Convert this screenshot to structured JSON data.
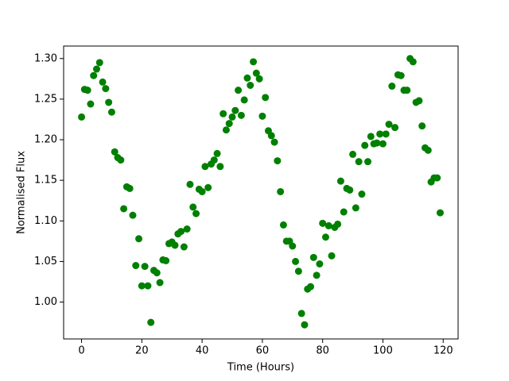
{
  "chart_data": {
    "type": "scatter",
    "x_label": "Time (Hours)",
    "y_label": "Normalised Flux",
    "color": "#008000",
    "x": [
      0,
      1,
      2,
      3,
      4,
      5,
      6,
      7,
      8,
      9,
      10,
      11,
      12,
      13,
      14,
      15,
      16,
      17,
      18,
      19,
      20,
      21,
      22,
      23,
      24,
      25,
      26,
      27,
      28,
      29,
      30,
      31,
      32,
      33,
      34,
      35,
      36,
      37,
      38,
      39,
      40,
      41,
      42,
      43,
      44,
      45,
      46,
      47,
      48,
      49,
      50,
      51,
      52,
      53,
      54,
      55,
      56,
      57,
      58,
      59,
      60,
      61,
      62,
      63,
      64,
      65,
      66,
      67,
      68,
      69,
      70,
      71,
      72,
      73,
      74,
      75,
      76,
      77,
      78,
      79,
      80,
      81,
      82,
      83,
      84,
      85,
      86,
      87,
      88,
      89,
      90,
      91,
      92,
      93,
      94,
      95,
      96,
      97,
      98,
      99,
      100,
      101,
      102,
      103,
      104,
      105,
      106,
      107,
      108,
      109,
      110,
      111,
      112,
      113,
      114,
      115,
      116,
      117,
      118,
      119
    ],
    "values": [
      1.228,
      1.262,
      1.261,
      1.244,
      1.279,
      1.287,
      1.295,
      1.271,
      1.263,
      1.246,
      1.234,
      1.185,
      1.178,
      1.175,
      1.115,
      1.142,
      1.14,
      1.107,
      1.045,
      1.078,
      1.02,
      1.044,
      1.02,
      0.975,
      1.039,
      1.036,
      1.024,
      1.052,
      1.051,
      1.072,
      1.074,
      1.07,
      1.084,
      1.087,
      1.068,
      1.09,
      1.145,
      1.117,
      1.109,
      1.139,
      1.136,
      1.167,
      1.141,
      1.17,
      1.175,
      1.183,
      1.167,
      1.232,
      1.212,
      1.22,
      1.228,
      1.236,
      1.261,
      1.23,
      1.249,
      1.276,
      1.267,
      1.296,
      1.282,
      1.275,
      1.229,
      1.252,
      1.211,
      1.205,
      1.197,
      1.174,
      1.136,
      1.095,
      1.075,
      1.075,
      1.069,
      1.05,
      1.038,
      0.986,
      0.972,
      1.016,
      1.019,
      1.055,
      1.033,
      1.047,
      1.097,
      1.08,
      1.094,
      1.057,
      1.092,
      1.096,
      1.149,
      1.111,
      1.14,
      1.138,
      1.182,
      1.116,
      1.173,
      1.133,
      1.193,
      1.173,
      1.204,
      1.195,
      1.196,
      1.207,
      1.195,
      1.207,
      1.219,
      1.266,
      1.215,
      1.28,
      1.279,
      1.261,
      1.261,
      1.3,
      1.296,
      1.246,
      1.248,
      1.217,
      1.19,
      1.187,
      1.148,
      1.153,
      1.153,
      1.11
    ],
    "xlim": [
      -5.95,
      124.95
    ],
    "xticks": [
      0,
      20,
      40,
      60,
      80,
      100,
      120
    ],
    "ylim": [
      0.9546,
      1.3154
    ],
    "yticks": [
      {
        "value": 1,
        "label": "1.00"
      },
      1.05,
      {
        "value": 1.1,
        "label": "1.10"
      },
      1.15,
      {
        "value": 1.2,
        "label": "1.20"
      },
      1.25,
      {
        "value": 1.3,
        "label": "1.30"
      }
    ]
  }
}
